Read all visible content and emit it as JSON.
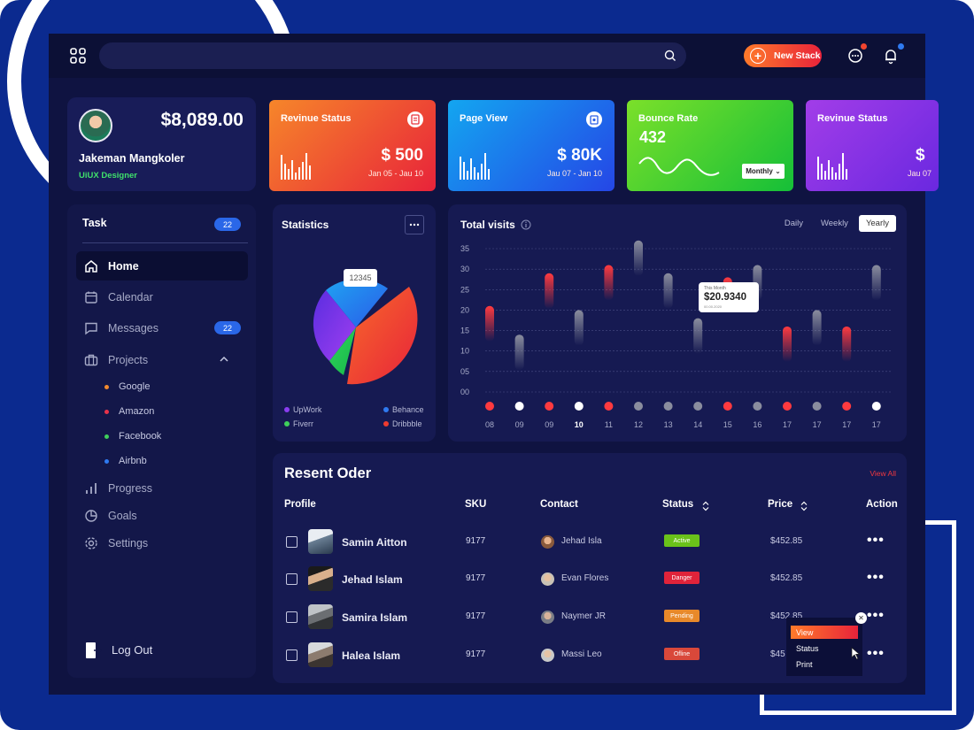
{
  "topbar": {
    "new_stack_label": "New Stack"
  },
  "profile": {
    "balance": "$8,089.00",
    "name": "Jakeman Mangkoler",
    "role": "UiUX Designer"
  },
  "cards": [
    {
      "title": "Revinue Status",
      "value": "$ 500",
      "date": "Jan 05 - Jau 10",
      "color": "#ef4b2f"
    },
    {
      "title": "Page View",
      "value": "$ 80K",
      "date": "Jau 07 - Jan 10",
      "color": "#1b6cf0"
    },
    {
      "title": "Bounce Rate",
      "value": "432",
      "dropdown": "Monthly",
      "color": "#3ccf2b"
    },
    {
      "title": "Revinue Status",
      "value": "$",
      "date": "Jau 07",
      "color": "#8e2de2"
    }
  ],
  "sidebar": {
    "task_label": "Task",
    "task_count": "22",
    "items": [
      {
        "label": "Home",
        "icon": "home-icon"
      },
      {
        "label": "Calendar",
        "icon": "calendar-icon"
      },
      {
        "label": "Messages",
        "icon": "message-icon",
        "badge": "22"
      },
      {
        "label": "Projects",
        "icon": "briefcase-icon"
      }
    ],
    "projects": [
      {
        "label": "Google",
        "color": "#f28a2e"
      },
      {
        "label": "Amazon",
        "color": "#e8334a"
      },
      {
        "label": "Facebook",
        "color": "#3fcf5b"
      },
      {
        "label": "Airbnb",
        "color": "#2f7af0"
      }
    ],
    "bottom_items": [
      {
        "label": "Progress",
        "icon": "progress-icon"
      },
      {
        "label": "Goals",
        "icon": "goals-icon"
      },
      {
        "label": "Settings",
        "icon": "settings-icon"
      }
    ],
    "logout": "Log Out"
  },
  "statistics": {
    "title": "Statistics",
    "tooltip": "12345",
    "legend": [
      {
        "label": "UpWork",
        "color": "#8a3df0"
      },
      {
        "label": "Behance",
        "color": "#2f7af0"
      },
      {
        "label": "Fiverr",
        "color": "#3fcf5b"
      },
      {
        "label": "Dribbble",
        "color": "#ef3b2f"
      }
    ]
  },
  "visits": {
    "title": "Total visits",
    "periods": [
      "Daily",
      "Weekly",
      "Yearly"
    ],
    "active_period": "Yearly",
    "callout_label": "This Month",
    "callout_value": "$20.9340",
    "callout_date": "00.00.2020"
  },
  "chart_data": {
    "type": "bar",
    "title": "Total visits",
    "y_ticks": [
      "35",
      "30",
      "25",
      "20",
      "15",
      "10",
      "05",
      "00"
    ],
    "ylim": [
      0,
      35
    ],
    "categories": [
      "08",
      "09",
      "09",
      "10",
      "11",
      "12",
      "13",
      "14",
      "15",
      "16",
      "17",
      "17",
      "17",
      "17"
    ],
    "values": [
      21,
      14,
      29,
      20,
      31,
      37,
      29,
      18,
      28,
      31,
      16,
      20,
      16,
      31
    ],
    "point_colors": [
      "red",
      "white",
      "red",
      "white",
      "red",
      "gray",
      "gray",
      "gray",
      "red",
      "gray",
      "red",
      "gray",
      "red",
      "white"
    ],
    "highlight_category_index": 3
  },
  "orders": {
    "title": "Resent Oder",
    "view_all": "View All",
    "headers": {
      "profile": "Profile",
      "sku": "SKU",
      "contact": "Contact",
      "status": "Status",
      "price": "Price",
      "action": "Action"
    },
    "rows": [
      {
        "name": "Samin Aitton",
        "sku": "9177",
        "contact": "Jehad Isla",
        "status": "Active",
        "status_color": "#6ac21a",
        "price": "$452.85"
      },
      {
        "name": "Jehad Islam",
        "sku": "9177",
        "contact": "Evan Flores",
        "status": "Danger",
        "status_color": "#e0233a",
        "price": "$452.85"
      },
      {
        "name": "Samira Islam",
        "sku": "9177",
        "contact": "Naymer JR",
        "status": "Pending",
        "status_color": "#e8892a",
        "price": "$452.85"
      },
      {
        "name": "Halea Islam",
        "sku": "9177",
        "contact": "Massi Leo",
        "status": "Ofline",
        "status_color": "#d9483a",
        "price": "$45"
      }
    ],
    "action_menu": [
      "View",
      "Status",
      "Print"
    ]
  }
}
